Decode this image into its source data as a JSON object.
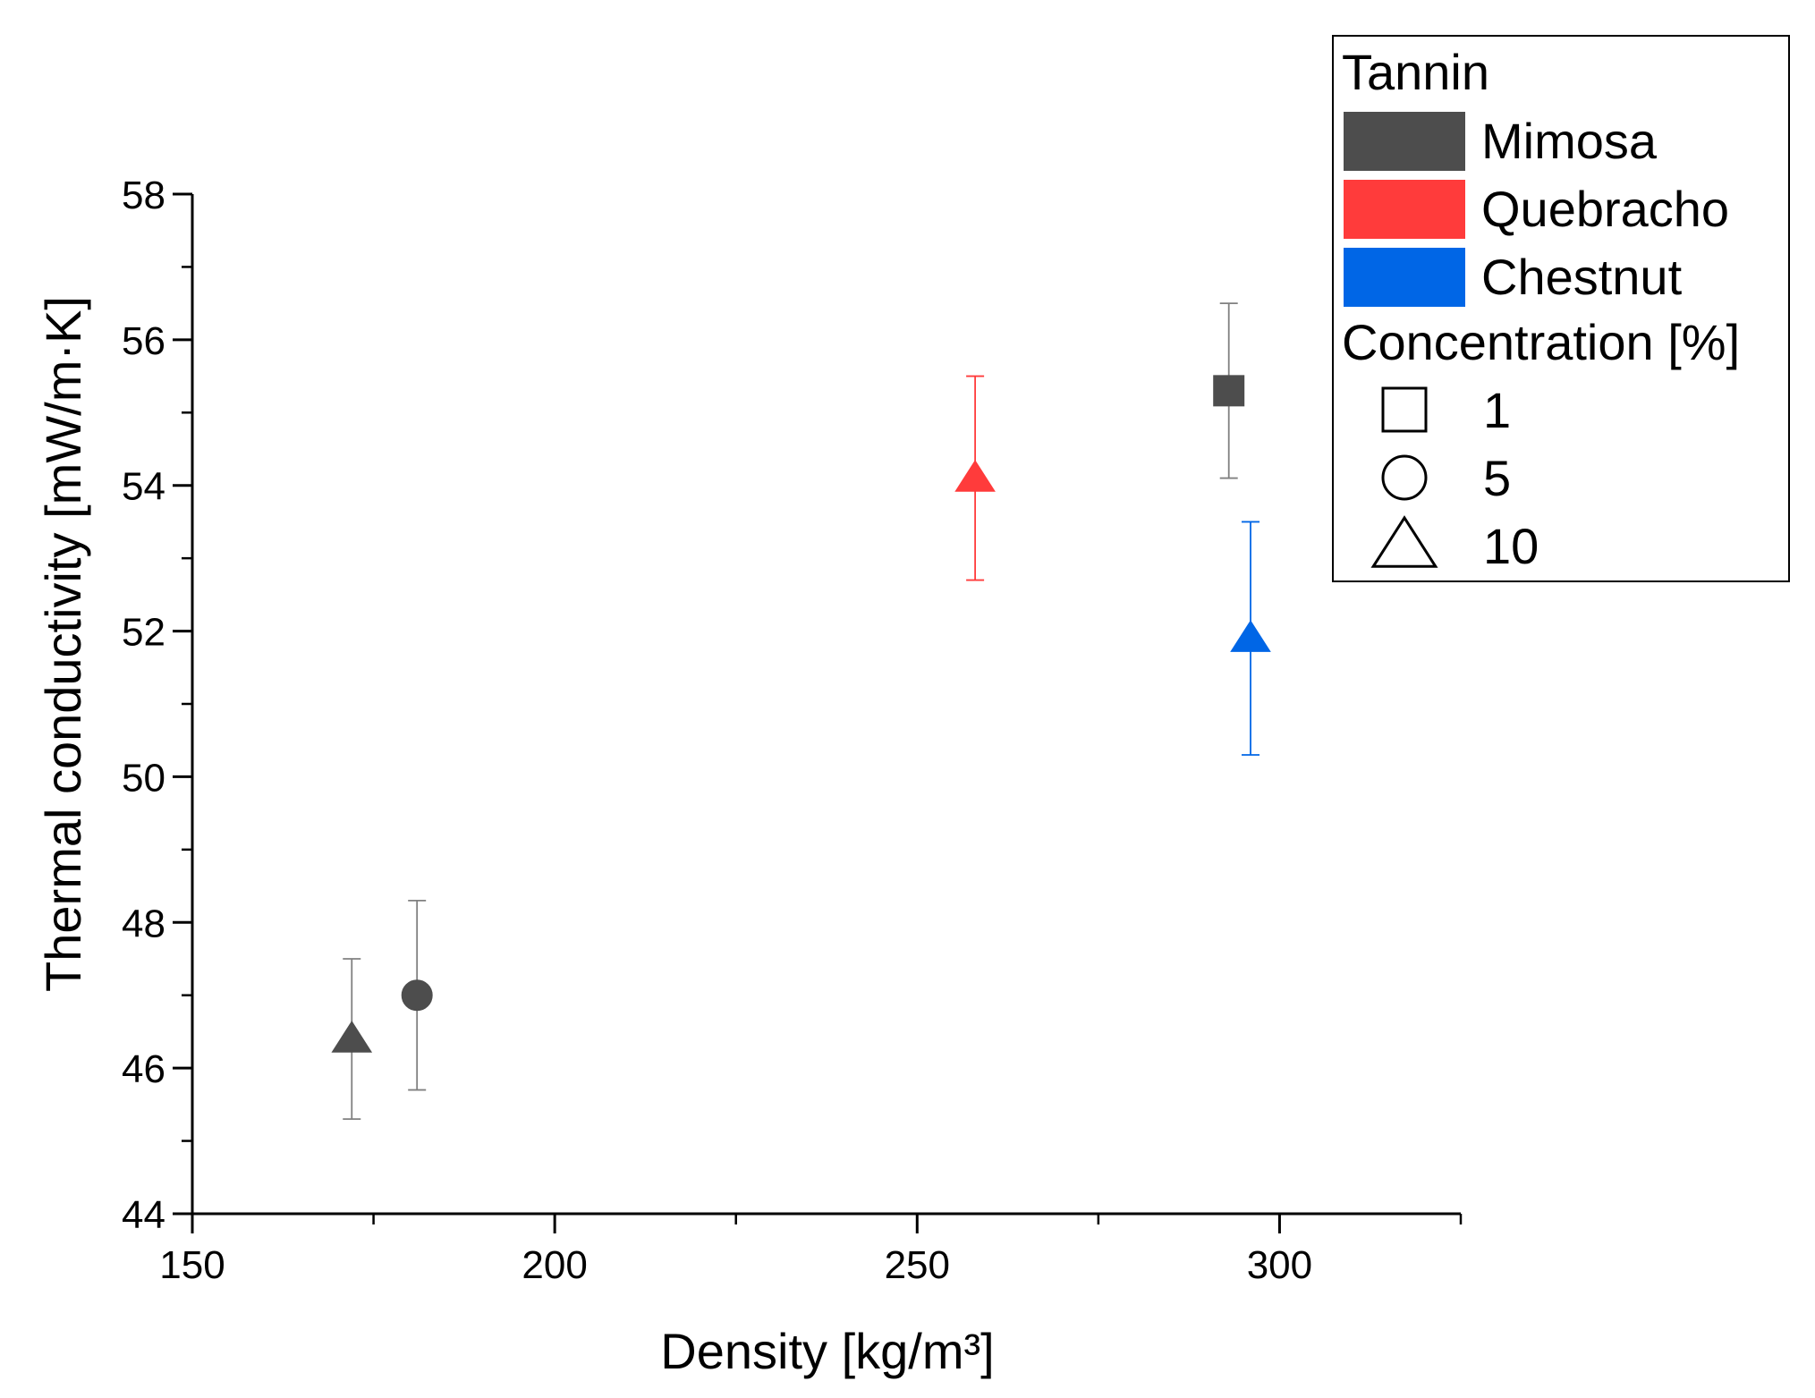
{
  "chart_data": {
    "type": "scatter",
    "title": "",
    "xlabel": "Density [kg/m³]",
    "ylabel": "Thermal conductivity [mW/m·K]",
    "xlim": [
      150,
      325
    ],
    "ylim": [
      44,
      58
    ],
    "xticks": [
      150,
      200,
      250,
      300
    ],
    "yticks": [
      44,
      46,
      48,
      50,
      52,
      54,
      56,
      58
    ],
    "grid": false,
    "legend": {
      "placement": "top-right",
      "color_title": "Tannin",
      "marker_title": "Concentration [%]",
      "colors": [
        {
          "label": "Mimosa",
          "color": "#4d4d4d"
        },
        {
          "label": "Quebracho",
          "color": "#ff3b3b"
        },
        {
          "label": "Chestnut",
          "color": "#0066e6"
        }
      ],
      "markers": [
        {
          "label": "1",
          "shape": "square"
        },
        {
          "label": "5",
          "shape": "circle"
        },
        {
          "label": "10",
          "shape": "triangle"
        }
      ]
    },
    "points": [
      {
        "tannin": "Mimosa",
        "concentration": "10",
        "shape": "triangle",
        "color": "#4d4d4d",
        "x": 172,
        "y": 46.4,
        "err_low": 45.3,
        "err_high": 47.5
      },
      {
        "tannin": "Mimosa",
        "concentration": "5",
        "shape": "circle",
        "color": "#4d4d4d",
        "x": 181,
        "y": 47.0,
        "err_low": 45.7,
        "err_high": 48.3
      },
      {
        "tannin": "Quebracho",
        "concentration": "10",
        "shape": "triangle",
        "color": "#ff3b3b",
        "x": 258,
        "y": 54.1,
        "err_low": 52.7,
        "err_high": 55.5
      },
      {
        "tannin": "Mimosa",
        "concentration": "1",
        "shape": "square",
        "color": "#4d4d4d",
        "x": 293,
        "y": 55.3,
        "err_low": 54.1,
        "err_high": 56.5
      },
      {
        "tannin": "Chestnut",
        "concentration": "10",
        "shape": "triangle",
        "color": "#0066e6",
        "x": 296,
        "y": 51.9,
        "err_low": 50.3,
        "err_high": 53.5
      }
    ]
  }
}
